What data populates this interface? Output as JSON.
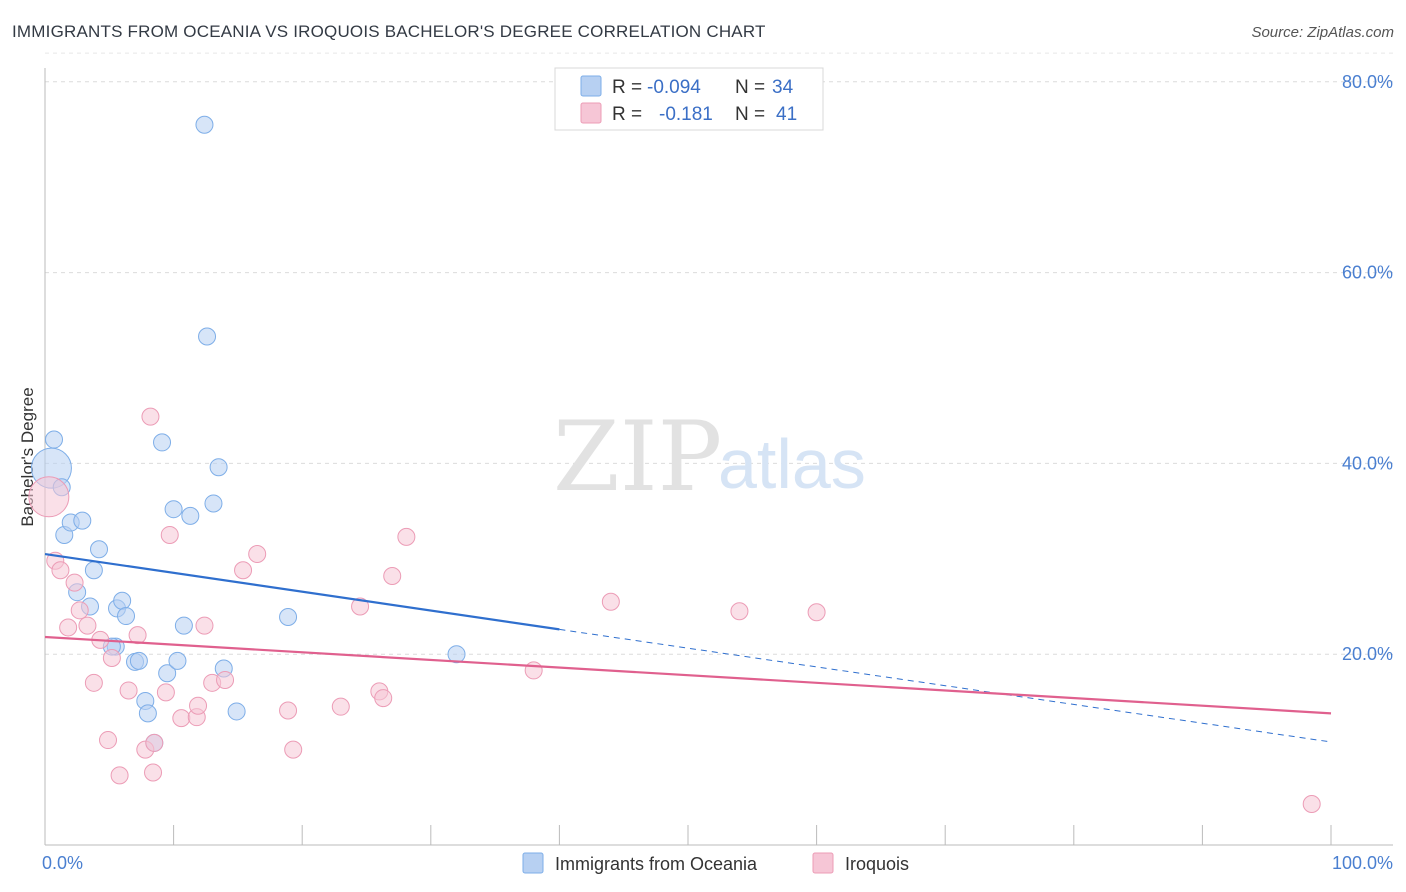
{
  "header": {
    "title": "IMMIGRANTS FROM OCEANIA VS IROQUOIS BACHELOR'S DEGREE CORRELATION CHART",
    "source": "Source: ZipAtlas.com"
  },
  "watermark": {
    "zip": "ZIP",
    "atlas": "atlas"
  },
  "chart_data": {
    "type": "scatter",
    "title": "IMMIGRANTS FROM OCEANIA VS IROQUOIS BACHELOR'S DEGREE CORRELATION CHART",
    "xlabel": "",
    "ylabel": "Bachelor's Degree",
    "xlim": [
      0,
      100
    ],
    "ylim": [
      0,
      85
    ],
    "x_tick_labels": [
      {
        "value": 0,
        "label": "0.0%"
      },
      {
        "value": 100,
        "label": "100.0%"
      }
    ],
    "y_tick_labels": [
      {
        "value": 20,
        "label": "20.0%"
      },
      {
        "value": 40,
        "label": "40.0%"
      },
      {
        "value": 60,
        "label": "60.0%"
      },
      {
        "value": 80,
        "label": "80.0%"
      }
    ],
    "grid": true,
    "legend_position": "top-center",
    "series": [
      {
        "name": "Immigrants from Oceania",
        "color": "#7eaee8",
        "fill": "#b7d0f2",
        "line_color": "#2f6fce",
        "R": "-0.094",
        "N": "34",
        "r_label": "R = ",
        "n_label": "N = ",
        "trend": {
          "x0": 0,
          "y0": 30.5,
          "x1": 40,
          "y1": 22.6,
          "dash_to_x": 100,
          "dash_to_y": 10.8
        },
        "points": [
          {
            "x": 0.5,
            "y": 39.5,
            "big": true
          },
          {
            "x": 0.7,
            "y": 42.5
          },
          {
            "x": 1.3,
            "y": 37.5
          },
          {
            "x": 1.5,
            "y": 32.5
          },
          {
            "x": 2.0,
            "y": 33.8
          },
          {
            "x": 2.9,
            "y": 34.0
          },
          {
            "x": 4.2,
            "y": 31.0
          },
          {
            "x": 3.8,
            "y": 28.8
          },
          {
            "x": 2.5,
            "y": 26.5
          },
          {
            "x": 3.5,
            "y": 25.0
          },
          {
            "x": 5.5,
            "y": 20.8
          },
          {
            "x": 5.2,
            "y": 20.8
          },
          {
            "x": 5.6,
            "y": 24.8
          },
          {
            "x": 6.0,
            "y": 25.6
          },
          {
            "x": 6.3,
            "y": 24.0
          },
          {
            "x": 7.0,
            "y": 19.2
          },
          {
            "x": 7.3,
            "y": 19.3
          },
          {
            "x": 7.8,
            "y": 15.1
          },
          {
            "x": 8.0,
            "y": 13.8
          },
          {
            "x": 8.5,
            "y": 10.7
          },
          {
            "x": 9.1,
            "y": 42.2
          },
          {
            "x": 9.5,
            "y": 18.0
          },
          {
            "x": 10.0,
            "y": 35.2
          },
          {
            "x": 10.3,
            "y": 19.3
          },
          {
            "x": 10.8,
            "y": 23.0
          },
          {
            "x": 11.3,
            "y": 34.5
          },
          {
            "x": 12.4,
            "y": 75.5
          },
          {
            "x": 12.6,
            "y": 53.3
          },
          {
            "x": 13.1,
            "y": 35.8
          },
          {
            "x": 13.5,
            "y": 39.6
          },
          {
            "x": 13.9,
            "y": 18.5
          },
          {
            "x": 14.9,
            "y": 14.0
          },
          {
            "x": 18.9,
            "y": 23.9
          },
          {
            "x": 32.0,
            "y": 20.0
          }
        ]
      },
      {
        "name": "Iroquois",
        "color": "#ec9cb6",
        "fill": "#f6c6d6",
        "line_color": "#e0608e",
        "R": "-0.181",
        "N": "41",
        "r_label": "R = ",
        "n_label": "N = ",
        "trend": {
          "x0": 0,
          "y0": 21.8,
          "x1": 100,
          "y1": 13.8
        },
        "points": [
          {
            "x": 0.3,
            "y": 36.5,
            "big": true
          },
          {
            "x": 0.8,
            "y": 29.8
          },
          {
            "x": 1.2,
            "y": 28.8
          },
          {
            "x": 1.8,
            "y": 22.8
          },
          {
            "x": 2.3,
            "y": 27.5
          },
          {
            "x": 2.7,
            "y": 24.6
          },
          {
            "x": 3.3,
            "y": 23.0
          },
          {
            "x": 3.8,
            "y": 17.0
          },
          {
            "x": 4.3,
            "y": 21.5
          },
          {
            "x": 4.9,
            "y": 11.0
          },
          {
            "x": 5.2,
            "y": 19.6
          },
          {
            "x": 5.8,
            "y": 7.3
          },
          {
            "x": 6.5,
            "y": 16.2
          },
          {
            "x": 7.2,
            "y": 22.0
          },
          {
            "x": 7.8,
            "y": 10.0
          },
          {
            "x": 8.2,
            "y": 44.9
          },
          {
            "x": 8.4,
            "y": 7.6
          },
          {
            "x": 8.5,
            "y": 10.7
          },
          {
            "x": 9.4,
            "y": 16.0
          },
          {
            "x": 9.7,
            "y": 32.5
          },
          {
            "x": 10.6,
            "y": 13.3
          },
          {
            "x": 11.8,
            "y": 13.4
          },
          {
            "x": 11.9,
            "y": 14.6
          },
          {
            "x": 12.4,
            "y": 23.0
          },
          {
            "x": 13.0,
            "y": 17.0
          },
          {
            "x": 14.0,
            "y": 17.3
          },
          {
            "x": 15.4,
            "y": 28.8
          },
          {
            "x": 16.5,
            "y": 30.5
          },
          {
            "x": 18.9,
            "y": 14.1
          },
          {
            "x": 19.3,
            "y": 10.0
          },
          {
            "x": 23.0,
            "y": 14.5
          },
          {
            "x": 24.5,
            "y": 25.0
          },
          {
            "x": 26.0,
            "y": 16.1
          },
          {
            "x": 26.3,
            "y": 15.4
          },
          {
            "x": 27.0,
            "y": 28.2
          },
          {
            "x": 28.1,
            "y": 32.3
          },
          {
            "x": 38.0,
            "y": 18.3
          },
          {
            "x": 44.0,
            "y": 25.5
          },
          {
            "x": 54.0,
            "y": 24.5
          },
          {
            "x": 60.0,
            "y": 24.4
          },
          {
            "x": 98.5,
            "y": 4.3
          }
        ]
      }
    ]
  }
}
